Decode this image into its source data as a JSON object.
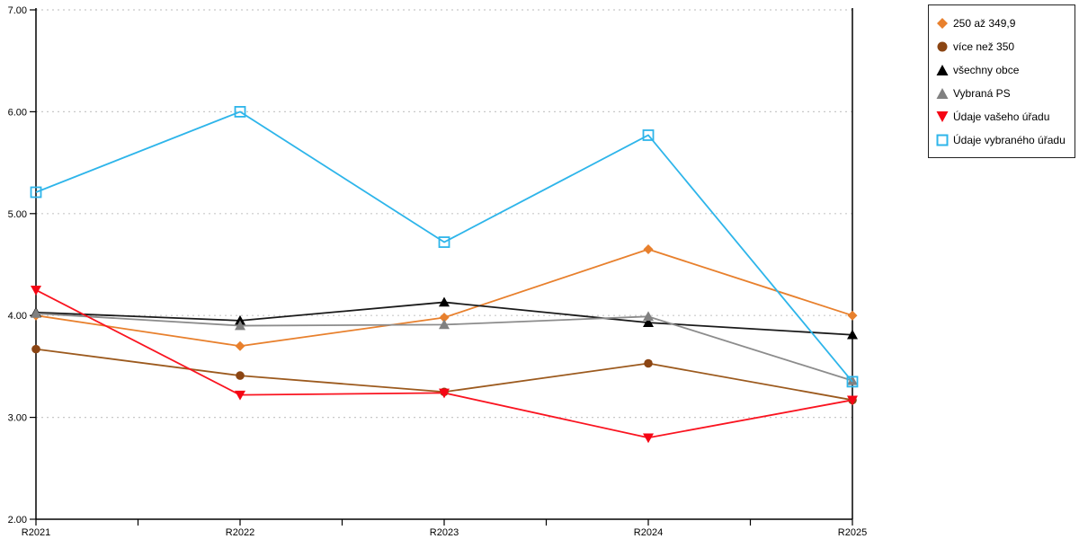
{
  "chart_data": {
    "type": "line",
    "title": "",
    "xlabel": "",
    "ylabel": "",
    "categories": [
      "R2021",
      "R2022",
      "R2023",
      "R2024",
      "R2025"
    ],
    "series": [
      {
        "name": "250 až 349,9",
        "marker": "diamond",
        "line_color": "#E8802D",
        "marker_color": "#E8802D",
        "values": [
          4.0,
          3.7,
          3.98,
          4.65,
          4.0
        ]
      },
      {
        "name": "více než 350",
        "marker": "circle",
        "line_color": "#9C5A1E",
        "marker_color": "#8B4513",
        "values": [
          3.67,
          3.41,
          3.25,
          3.53,
          3.17
        ]
      },
      {
        "name": "všechny obce",
        "marker": "triangle-up",
        "line_color": "#1A1A1A",
        "marker_color": "#000000",
        "values": [
          4.03,
          3.95,
          4.13,
          3.93,
          3.81
        ]
      },
      {
        "name": "Vybraná PS",
        "marker": "triangle-up",
        "line_color": "#8C8C8C",
        "marker_color": "#808080",
        "values": [
          4.02,
          3.9,
          3.91,
          3.99,
          3.36
        ]
      },
      {
        "name": "Údaje vašeho úřadu",
        "marker": "triangle-down",
        "line_color": "#FA1420",
        "marker_color": "#F50514",
        "values": [
          4.25,
          3.22,
          3.24,
          2.8,
          3.17
        ]
      },
      {
        "name": "Údaje vybraného úřadu",
        "marker": "square-open",
        "line_color": "#2EB5EA",
        "marker_color": "#2EB5EA",
        "values": [
          5.21,
          6.0,
          4.72,
          5.77,
          3.35
        ]
      }
    ],
    "ylim": [
      2.0,
      7.0
    ],
    "ytick_step": 1.0,
    "yticklabels": [
      "2.00",
      "3.00",
      "4.00",
      "5.00",
      "6.00",
      "7.00"
    ],
    "x_minor_ticks_between_categories": 1,
    "grid": {
      "horizontal": true,
      "style": "dotted",
      "color": "#C8C8C8"
    },
    "axis_color": "#000000",
    "legend_position": "outside-top-right"
  }
}
